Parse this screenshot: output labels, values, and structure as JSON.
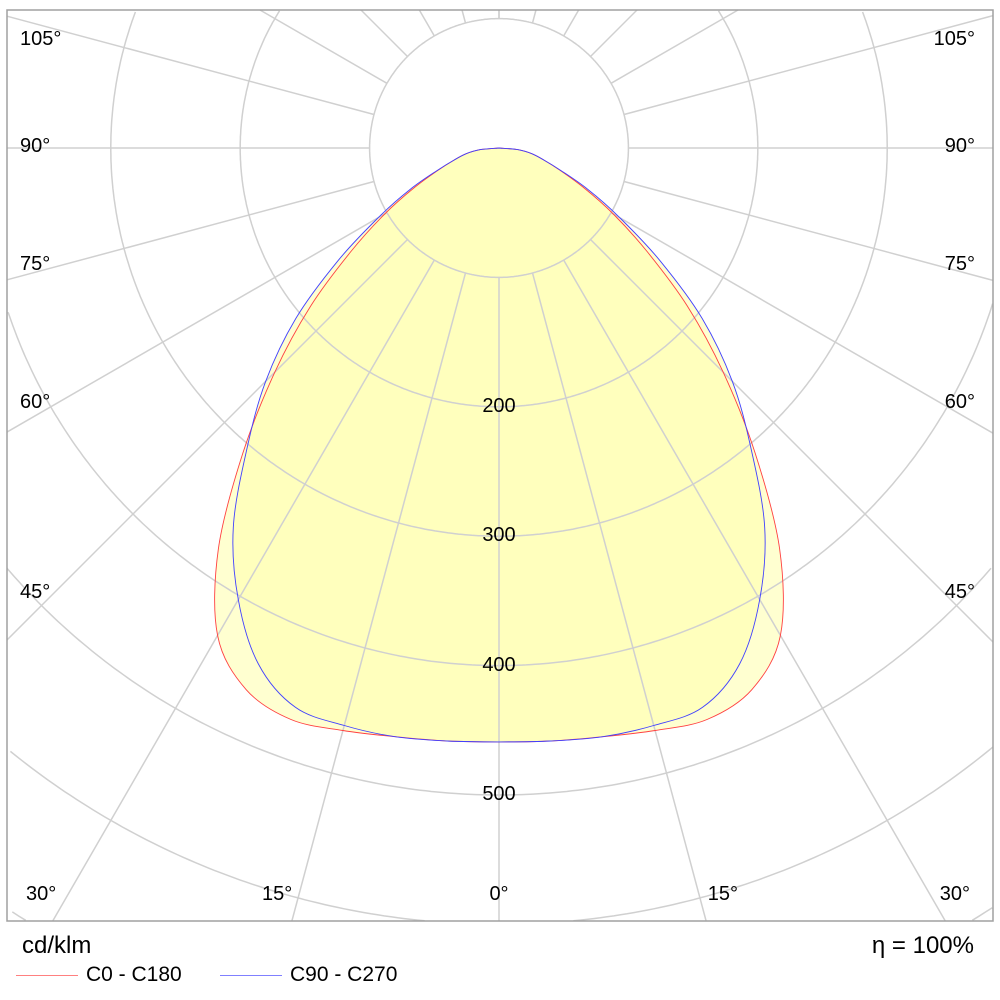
{
  "chart_data": {
    "type": "polar",
    "unit_label": "cd/klm",
    "efficiency_label": "η = 100%",
    "radial_ticks": [
      100,
      200,
      300,
      400,
      500,
      600,
      700
    ],
    "radial_tick_labels": [
      "200",
      "300",
      "400",
      "500"
    ],
    "angle_labels": {
      "left": [
        "105°",
        "90°",
        "75°",
        "60°",
        "45°",
        "30°",
        "15°"
      ],
      "center": "0°",
      "right": [
        "105°",
        "90°",
        "75°",
        "60°",
        "45°",
        "30°",
        "15°"
      ]
    },
    "angles_deg": [
      0,
      5,
      10,
      15,
      20,
      25,
      30,
      35,
      40,
      45,
      50,
      55,
      60,
      65,
      70,
      75,
      80,
      85,
      90
    ],
    "series": [
      {
        "name": "C0 - C180",
        "color": "#ff4040",
        "values": [
          459,
          460,
          462,
          466,
          470,
          462,
          435,
          378,
          308,
          245,
          190,
          140,
          102,
          72,
          50,
          36,
          26,
          15,
          0
        ]
      },
      {
        "name": "C90 - C270",
        "color": "#4040ff",
        "values": [
          459,
          460,
          462,
          462,
          460,
          440,
          403,
          358,
          303,
          255,
          205,
          152,
          108,
          76,
          51,
          36,
          26,
          15,
          0
        ]
      }
    ],
    "fill_color": "#ffffb0",
    "grid_color": "#d0d0d0"
  }
}
